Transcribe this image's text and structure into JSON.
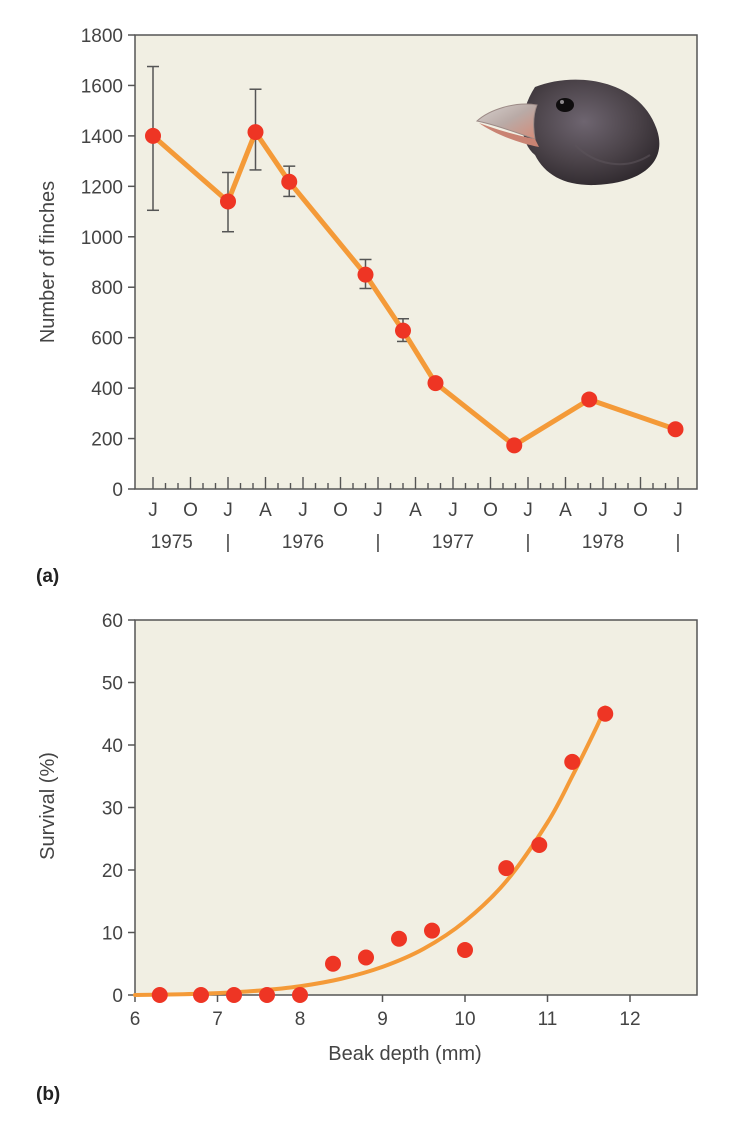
{
  "colors": {
    "plot_bg": "#f1efe3",
    "axis": "#555555",
    "line": "#f49a38",
    "marker": "#ee3524",
    "error_bar": "#555555"
  },
  "chart_data": [
    {
      "panel_label": "(a)",
      "type": "line",
      "title": "",
      "xlabel": "",
      "ylabel": "Number of finches",
      "ylim": [
        0,
        1800
      ],
      "yticks": [
        0,
        200,
        400,
        600,
        800,
        1000,
        1200,
        1400,
        1600,
        1800
      ],
      "grid": false,
      "x_unit": "months since Jan 1975",
      "xlim": [
        0,
        45
      ],
      "x_month_ticks": [
        {
          "x": 6,
          "label": "J"
        },
        {
          "x": 9,
          "label": "O"
        },
        {
          "x": 12,
          "label": "J"
        },
        {
          "x": 15,
          "label": "A"
        },
        {
          "x": 18,
          "label": "J"
        },
        {
          "x": 21,
          "label": "O"
        },
        {
          "x": 24,
          "label": "J"
        },
        {
          "x": 27,
          "label": "A"
        },
        {
          "x": 30,
          "label": "J"
        },
        {
          "x": 33,
          "label": "O"
        },
        {
          "x": 36,
          "label": "J"
        },
        {
          "x": 39,
          "label": "A"
        },
        {
          "x": 42,
          "label": "J"
        },
        {
          "x": 45,
          "label": "O"
        },
        {
          "x": 48,
          "label": "J"
        }
      ],
      "x_year_labels": [
        {
          "x": 7.5,
          "label": "1975"
        },
        {
          "x": 18,
          "label": "1976"
        },
        {
          "x": 30,
          "label": "1977"
        },
        {
          "x": 42,
          "label": "1978"
        }
      ],
      "x_year_separators": [
        {
          "x": 12,
          "label": "|"
        },
        {
          "x": 24,
          "label": "|"
        },
        {
          "x": 36,
          "label": "|"
        },
        {
          "x": 48,
          "label": "|"
        }
      ],
      "series": [
        {
          "x": [
            6,
            12,
            14.2,
            16.9,
            23,
            26,
            28.6,
            34.9,
            40.9,
            47.8
          ],
          "values": [
            1400,
            1140,
            1415,
            1218,
            850,
            628,
            420,
            173,
            355,
            237
          ],
          "error_low": [
            1105,
            1020,
            1265,
            1160,
            795,
            585,
            null,
            null,
            null,
            null
          ],
          "error_high": [
            1675,
            1255,
            1585,
            1280,
            910,
            675,
            null,
            null,
            null,
            null
          ]
        }
      ],
      "illustration": "finch-head-icon"
    },
    {
      "panel_label": "(b)",
      "type": "scatter",
      "title": "",
      "xlabel": "Beak depth (mm)",
      "ylabel": "Survival (%)",
      "xlim": [
        6,
        12.8
      ],
      "ylim": [
        0,
        60
      ],
      "xticks": [
        6,
        7,
        8,
        9,
        10,
        11,
        12
      ],
      "yticks": [
        0,
        10,
        20,
        30,
        40,
        50,
        60
      ],
      "grid": false,
      "points": {
        "x": [
          6.3,
          6.8,
          7.2,
          7.6,
          8.0,
          8.4,
          8.8,
          9.2,
          9.6,
          10.0,
          10.5,
          10.9,
          11.3,
          11.7
        ],
        "y": [
          0,
          0,
          0,
          0,
          0,
          5,
          6,
          9,
          10.3,
          7.2,
          20.3,
          24,
          37.3,
          45
        ]
      },
      "fit_curve": {
        "x": [
          6.0,
          6.5,
          7.0,
          7.5,
          8.0,
          8.5,
          9.0,
          9.5,
          10.0,
          10.5,
          11.0,
          11.3,
          11.6,
          11.7
        ],
        "y": [
          0,
          0.1,
          0.3,
          0.7,
          1.4,
          2.6,
          4.5,
          7.4,
          11.8,
          18.2,
          27.6,
          35.0,
          43.0,
          46.0
        ]
      }
    }
  ]
}
